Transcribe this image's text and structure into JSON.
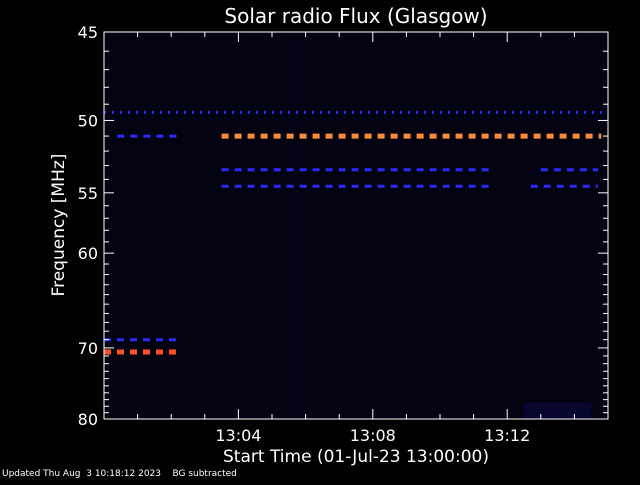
{
  "chart_data": {
    "type": "heatmap",
    "title": "Solar radio Flux (Glasgow)",
    "xlabel": "Start Time (01-Jul-23 13:00:00)",
    "ylabel": "Frequency [MHz]",
    "x_unit": "minutes after 13:00:00",
    "xlim": [
      0,
      15.0
    ],
    "ylim": [
      45,
      80
    ],
    "y_axis_direction": "increasing downward",
    "x_ticks": [
      {
        "value": 4,
        "label": "13:04"
      },
      {
        "value": 8,
        "label": "13:08"
      },
      {
        "value": 12,
        "label": "13:12"
      }
    ],
    "y_ticks": [
      {
        "value": 45,
        "label": "45"
      },
      {
        "value": 50,
        "label": "50"
      },
      {
        "value": 55,
        "label": "55"
      },
      {
        "value": 60,
        "label": "60"
      },
      {
        "value": 70,
        "label": "70"
      },
      {
        "value": 80,
        "label": "80"
      }
    ],
    "bands": [
      {
        "frequency": 49.5,
        "t_start": 0.0,
        "t_end": 15.0,
        "level": "medium"
      },
      {
        "frequency": 51.0,
        "t_start": 0.4,
        "t_end": 2.3,
        "level": "medium"
      },
      {
        "frequency": 51.0,
        "t_start": 3.5,
        "t_end": 14.8,
        "level": "high"
      },
      {
        "frequency": 53.3,
        "t_start": 3.5,
        "t_end": 11.6,
        "level": "medium"
      },
      {
        "frequency": 53.3,
        "t_start": 13.0,
        "t_end": 14.7,
        "level": "medium"
      },
      {
        "frequency": 54.5,
        "t_start": 3.5,
        "t_end": 11.6,
        "level": "medium"
      },
      {
        "frequency": 54.5,
        "t_start": 12.7,
        "t_end": 14.7,
        "level": "medium"
      },
      {
        "frequency": 69.0,
        "t_start": 0.0,
        "t_end": 2.2,
        "level": "medium"
      },
      {
        "frequency": 70.5,
        "t_start": 0.0,
        "t_end": 2.2,
        "level": "very-high"
      }
    ],
    "colors": {
      "background": "#000000",
      "plot_background": "#03030f",
      "low": "#1414d2",
      "medium": "#2a2aff",
      "high": "#ff8c3c",
      "very_high": "#ff5028",
      "text": "#ffffff"
    }
  },
  "footer": {
    "updated": "Updated Thu Aug  3 10:18:12 2023",
    "note": "BG subtracted"
  }
}
